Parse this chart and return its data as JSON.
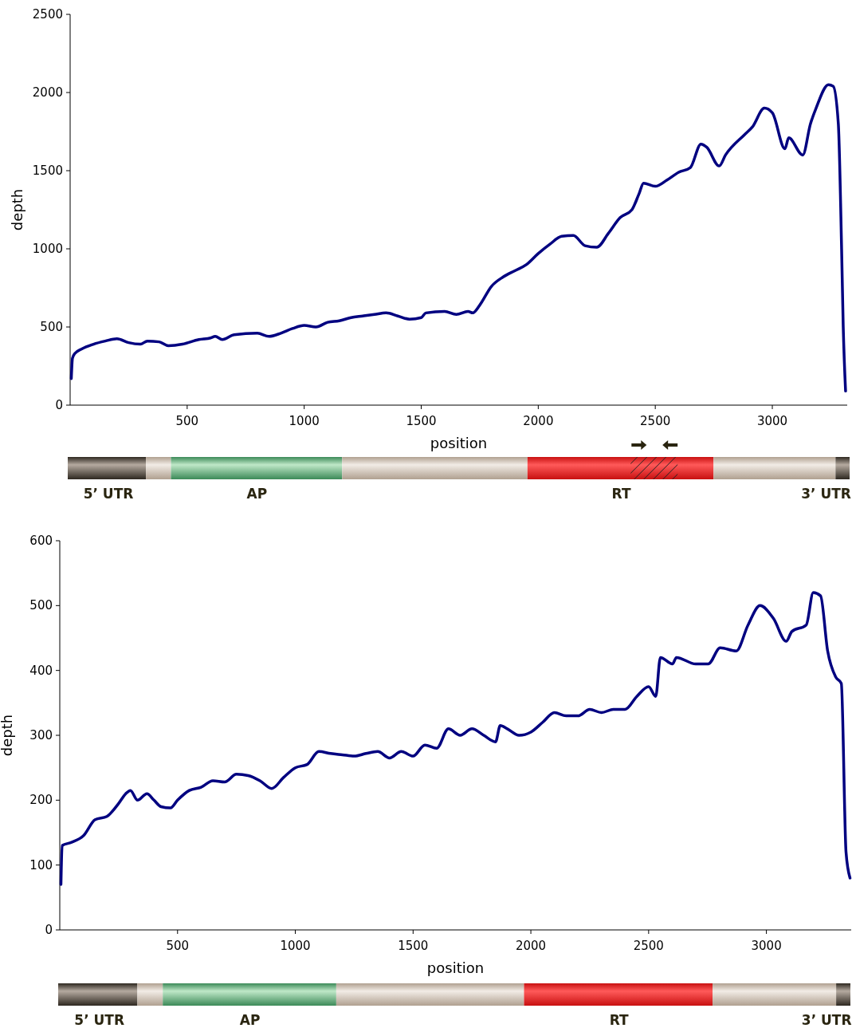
{
  "chart_data": [
    {
      "type": "line",
      "xlabel": "position",
      "ylabel": "depth",
      "xlim": [
        0,
        3320
      ],
      "ylim": [
        0,
        2500
      ],
      "xticks": [
        500,
        1000,
        1500,
        2000,
        2500,
        3000
      ],
      "yticks": [
        0,
        500,
        1000,
        1500,
        2000,
        2500
      ],
      "annotations": [
        "5’ UTR",
        "AP",
        "RT",
        "3’ UTR"
      ],
      "series": [
        {
          "color": "#000080",
          "x": [
            5,
            10,
            20,
            50,
            100,
            150,
            200,
            250,
            300,
            330,
            380,
            420,
            480,
            550,
            600,
            620,
            650,
            700,
            800,
            850,
            900,
            950,
            1000,
            1050,
            1100,
            1150,
            1200,
            1250,
            1300,
            1350,
            1400,
            1450,
            1500,
            1520,
            1600,
            1650,
            1700,
            1720,
            1750,
            1800,
            1850,
            1900,
            1950,
            2000,
            2050,
            2100,
            2150,
            2200,
            2250,
            2300,
            2350,
            2400,
            2430,
            2450,
            2500,
            2550,
            2600,
            2650,
            2695,
            2720,
            2773,
            2800,
            2881,
            2915,
            2966,
            3000,
            3054,
            3070,
            3130,
            3163,
            3187,
            3240,
            3260,
            3282,
            3296,
            3303,
            3313
          ],
          "values": [
            170,
            300,
            330,
            360,
            390,
            410,
            425,
            400,
            390,
            410,
            405,
            380,
            390,
            420,
            430,
            440,
            420,
            450,
            460,
            440,
            460,
            490,
            510,
            500,
            530,
            540,
            560,
            570,
            580,
            590,
            570,
            550,
            560,
            590,
            600,
            580,
            600,
            590,
            640,
            760,
            820,
            860,
            900,
            970,
            1030,
            1080,
            1085,
            1020,
            1010,
            1100,
            1200,
            1250,
            1350,
            1420,
            1400,
            1440,
            1490,
            1520,
            1670,
            1650,
            1530,
            1600,
            1730,
            1780,
            1900,
            1870,
            1640,
            1710,
            1600,
            1800,
            1900,
            2050,
            2040,
            1800,
            1000,
            500,
            90
          ]
        }
      ]
    },
    {
      "type": "line",
      "xlabel": "position",
      "ylabel": "depth",
      "xlim": [
        0,
        3360
      ],
      "ylim": [
        0,
        600
      ],
      "xticks": [
        500,
        1000,
        1500,
        2000,
        2500,
        3000
      ],
      "yticks": [
        0,
        100,
        200,
        300,
        400,
        500,
        600
      ],
      "annotations": [
        "5’ UTR",
        "AP",
        "RT",
        "3’ UTR"
      ],
      "series": [
        {
          "color": "#000080",
          "x": [
            5,
            10,
            50,
            100,
            150,
            200,
            250,
            280,
            300,
            330,
            370,
            400,
            430,
            470,
            500,
            550,
            600,
            650,
            700,
            750,
            800,
            850,
            900,
            950,
            1000,
            1050,
            1100,
            1150,
            1200,
            1250,
            1300,
            1350,
            1400,
            1450,
            1500,
            1550,
            1600,
            1650,
            1700,
            1750,
            1800,
            1850,
            1870,
            1900,
            1950,
            2000,
            2050,
            2100,
            2150,
            2200,
            2250,
            2300,
            2350,
            2400,
            2450,
            2500,
            2530,
            2550,
            2601,
            2618,
            2700,
            2753,
            2804,
            2872,
            2922,
            2973,
            3030,
            3084,
            3108,
            3169,
            3199,
            3230,
            3260,
            3294,
            3318,
            3338,
            3355
          ],
          "values": [
            70,
            130,
            135,
            145,
            170,
            175,
            195,
            210,
            215,
            200,
            210,
            200,
            190,
            188,
            200,
            215,
            220,
            230,
            228,
            240,
            238,
            230,
            218,
            235,
            250,
            255,
            275,
            272,
            270,
            268,
            272,
            275,
            265,
            275,
            268,
            285,
            280,
            310,
            300,
            310,
            300,
            290,
            315,
            310,
            300,
            305,
            320,
            335,
            330,
            330,
            340,
            335,
            340,
            340,
            360,
            375,
            360,
            420,
            410,
            420,
            410,
            410,
            435,
            430,
            470,
            500,
            480,
            445,
            460,
            470,
            520,
            515,
            430,
            390,
            380,
            120,
            80
          ]
        }
      ]
    }
  ]
}
